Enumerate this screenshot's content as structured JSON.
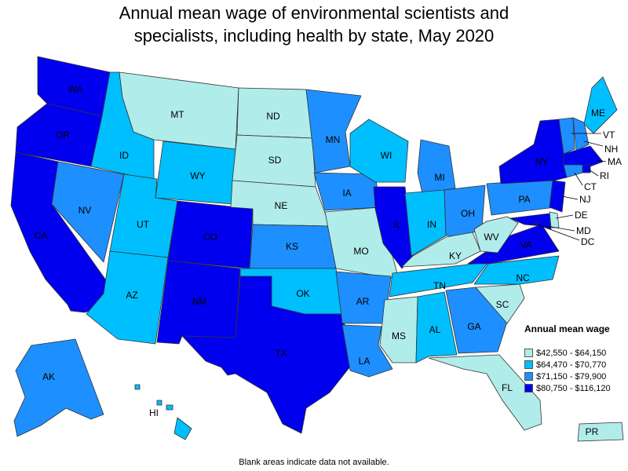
{
  "title_line1": "Annual mean wage of environmental scientists and",
  "title_line2": "specialists, including health by state, May 2020",
  "legend": {
    "title": "Annual mean wage",
    "items": [
      {
        "label": "$42,550 - $64,150",
        "color": "#b0ecea"
      },
      {
        "label": "$64,470 - $70,770",
        "color": "#00bfff"
      },
      {
        "label": "$71,150 - $79,900",
        "color": "#1e8fff"
      },
      {
        "label": "$80,750 - $116,120",
        "color": "#0000ee"
      }
    ]
  },
  "footnote": "Blank areas indicate data not available.",
  "states": [
    {
      "abbr": "WA",
      "tier": 3
    },
    {
      "abbr": "OR",
      "tier": 3
    },
    {
      "abbr": "CA",
      "tier": 3
    },
    {
      "abbr": "ID",
      "tier": 1
    },
    {
      "abbr": "NV",
      "tier": 2
    },
    {
      "abbr": "MT",
      "tier": 0
    },
    {
      "abbr": "WY",
      "tier": 1
    },
    {
      "abbr": "UT",
      "tier": 1
    },
    {
      "abbr": "AZ",
      "tier": 1
    },
    {
      "abbr": "CO",
      "tier": 3
    },
    {
      "abbr": "NM",
      "tier": 3
    },
    {
      "abbr": "ND",
      "tier": 0
    },
    {
      "abbr": "SD",
      "tier": 0
    },
    {
      "abbr": "NE",
      "tier": 0
    },
    {
      "abbr": "KS",
      "tier": 2
    },
    {
      "abbr": "OK",
      "tier": 1
    },
    {
      "abbr": "TX",
      "tier": 3
    },
    {
      "abbr": "MN",
      "tier": 2
    },
    {
      "abbr": "IA",
      "tier": 2
    },
    {
      "abbr": "MO",
      "tier": 0
    },
    {
      "abbr": "AR",
      "tier": 2
    },
    {
      "abbr": "LA",
      "tier": 2
    },
    {
      "abbr": "WI",
      "tier": 1
    },
    {
      "abbr": "IL",
      "tier": 3
    },
    {
      "abbr": "MI",
      "tier": 2
    },
    {
      "abbr": "IN",
      "tier": 1
    },
    {
      "abbr": "OH",
      "tier": 2
    },
    {
      "abbr": "KY",
      "tier": 0
    },
    {
      "abbr": "TN",
      "tier": 1
    },
    {
      "abbr": "MS",
      "tier": 0
    },
    {
      "abbr": "AL",
      "tier": 1
    },
    {
      "abbr": "GA",
      "tier": 2
    },
    {
      "abbr": "FL",
      "tier": 0
    },
    {
      "abbr": "SC",
      "tier": 0
    },
    {
      "abbr": "NC",
      "tier": 1
    },
    {
      "abbr": "VA",
      "tier": 3
    },
    {
      "abbr": "WV",
      "tier": 0
    },
    {
      "abbr": "PA",
      "tier": 2
    },
    {
      "abbr": "NY",
      "tier": 3
    },
    {
      "abbr": "ME",
      "tier": 1
    },
    {
      "abbr": "VT",
      "tier": 2
    },
    {
      "abbr": "NH",
      "tier": 2
    },
    {
      "abbr": "MA",
      "tier": 3
    },
    {
      "abbr": "RI",
      "tier": 3
    },
    {
      "abbr": "CT",
      "tier": 2
    },
    {
      "abbr": "NJ",
      "tier": 3
    },
    {
      "abbr": "DE",
      "tier": 0
    },
    {
      "abbr": "MD",
      "tier": 3
    },
    {
      "abbr": "DC",
      "tier": 3
    },
    {
      "abbr": "AK",
      "tier": 2
    },
    {
      "abbr": "HI",
      "tier": 1
    },
    {
      "abbr": "PR",
      "tier": 0
    }
  ]
}
